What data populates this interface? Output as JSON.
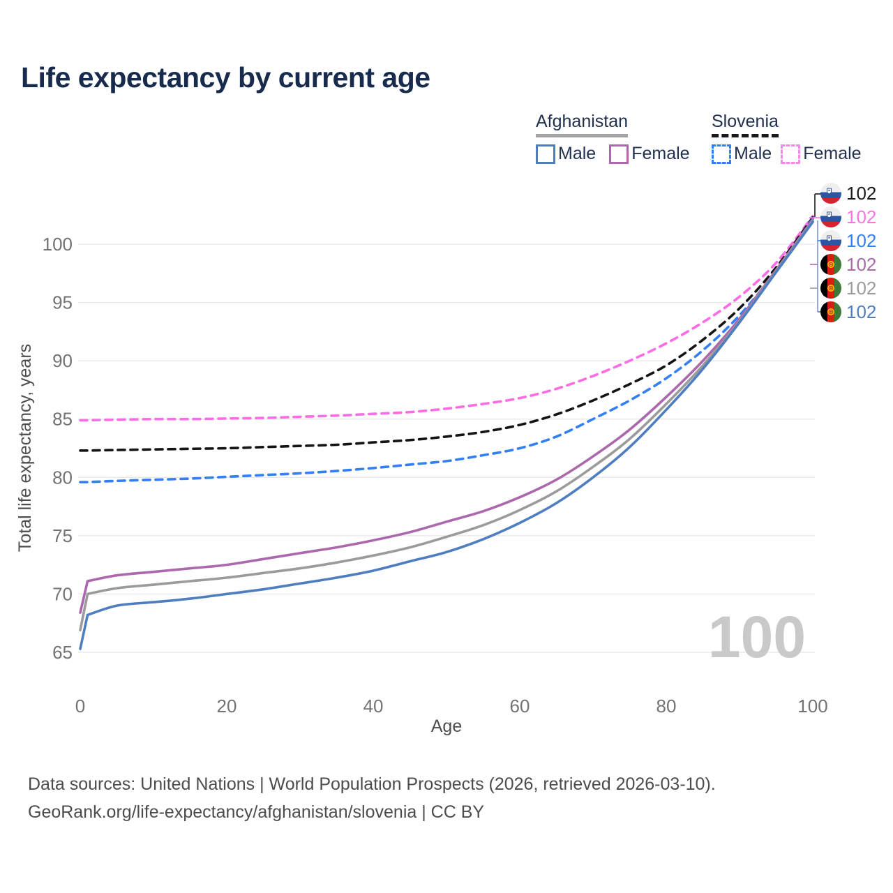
{
  "title": "Life expectancy by current age",
  "legend": {
    "afghanistan": {
      "label": "Afghanistan",
      "male": "Male",
      "female": "Female"
    },
    "slovenia": {
      "label": "Slovenia",
      "male": "Male",
      "female": "Female"
    }
  },
  "watermark_age": "100",
  "right_labels": [
    {
      "country": "Slovenia",
      "series": "Slovenia Total",
      "value": "102",
      "color": "#1a1a1a"
    },
    {
      "country": "Slovenia",
      "series": "Slovenia Female",
      "value": "102",
      "color": "#fb74e4"
    },
    {
      "country": "Slovenia",
      "series": "Slovenia Male",
      "value": "102",
      "color": "#3380f6"
    },
    {
      "country": "Afghanistan",
      "series": "Afghanistan Female",
      "value": "102",
      "color": "#a96ba9"
    },
    {
      "country": "Afghanistan",
      "series": "Afghanistan Total",
      "value": "102",
      "color": "#9c9c9c"
    },
    {
      "country": "Afghanistan",
      "series": "Afghanistan Male",
      "value": "102",
      "color": "#4e7dc0"
    }
  ],
  "footer": {
    "line1": "Data sources: United Nations | World Population Prospects (2026, retrieved 2026-03-10).",
    "line2": "GeoRank.org/life-expectancy/afghanistan/slovenia | CC BY"
  },
  "chart_data": {
    "type": "line",
    "title": "Life expectancy by current age",
    "xlabel": "Age",
    "ylabel": "Total life expectancy, years",
    "xlim": [
      0,
      100
    ],
    "ylim": [
      63.5,
      103.5
    ],
    "x_ticks": [
      0,
      20,
      40,
      60,
      80,
      100
    ],
    "y_ticks": [
      65,
      70,
      75,
      80,
      85,
      90,
      95,
      100
    ],
    "grid": "horizontal",
    "legend_position": "top-right",
    "ages": [
      0,
      1,
      5,
      10,
      15,
      20,
      25,
      30,
      35,
      40,
      45,
      50,
      55,
      60,
      65,
      70,
      75,
      80,
      85,
      90,
      95,
      100
    ],
    "series": [
      {
        "name": "Slovenia Female",
        "country": "Slovenia",
        "sex": "Female",
        "style": "dashed",
        "color": "#fc6ce4",
        "values": [
          84.9,
          84.9,
          84.95,
          85.0,
          85.0,
          85.05,
          85.1,
          85.2,
          85.3,
          85.45,
          85.6,
          85.9,
          86.3,
          86.8,
          87.6,
          88.7,
          90.0,
          91.5,
          93.3,
          95.5,
          98.4,
          102.4
        ]
      },
      {
        "name": "Slovenia Total",
        "country": "Slovenia",
        "sex": "Both",
        "style": "dashed",
        "color": "#141414",
        "values": [
          82.3,
          82.3,
          82.35,
          82.4,
          82.45,
          82.5,
          82.6,
          82.7,
          82.8,
          83.0,
          83.2,
          83.5,
          83.9,
          84.5,
          85.4,
          86.6,
          88.0,
          89.6,
          91.8,
          94.5,
          98.0,
          102.3
        ]
      },
      {
        "name": "Slovenia Male",
        "country": "Slovenia",
        "sex": "Male",
        "style": "dashed",
        "color": "#3380f6",
        "values": [
          79.6,
          79.6,
          79.7,
          79.8,
          79.9,
          80.05,
          80.2,
          80.35,
          80.55,
          80.8,
          81.1,
          81.4,
          81.9,
          82.5,
          83.5,
          85.0,
          86.6,
          88.5,
          90.9,
          93.9,
          97.7,
          102.2
        ]
      },
      {
        "name": "Afghanistan Female",
        "country": "Afghanistan",
        "sex": "Female",
        "style": "solid",
        "color": "#ac68ac",
        "values": [
          68.4,
          71.1,
          71.6,
          71.9,
          72.2,
          72.5,
          73.0,
          73.5,
          74.0,
          74.6,
          75.3,
          76.2,
          77.1,
          78.3,
          79.8,
          81.8,
          84.1,
          86.9,
          90.0,
          93.6,
          97.8,
          102.1
        ]
      },
      {
        "name": "Afghanistan Total",
        "country": "Afghanistan",
        "sex": "Both",
        "style": "solid",
        "color": "#9b9b9b",
        "values": [
          66.9,
          70.0,
          70.5,
          70.8,
          71.1,
          71.4,
          71.8,
          72.2,
          72.7,
          73.3,
          74.0,
          74.9,
          75.9,
          77.2,
          78.8,
          80.9,
          83.3,
          86.3,
          89.6,
          93.4,
          97.7,
          102.0
        ]
      },
      {
        "name": "Afghanistan Male",
        "country": "Afghanistan",
        "sex": "Male",
        "style": "solid",
        "color": "#4e7dc0",
        "values": [
          65.3,
          68.2,
          69.0,
          69.3,
          69.6,
          70.0,
          70.4,
          70.9,
          71.4,
          72.0,
          72.8,
          73.6,
          74.7,
          76.1,
          77.8,
          80.0,
          82.6,
          85.8,
          89.3,
          93.3,
          97.6,
          101.9
        ]
      }
    ],
    "endpoint_value": 102
  }
}
